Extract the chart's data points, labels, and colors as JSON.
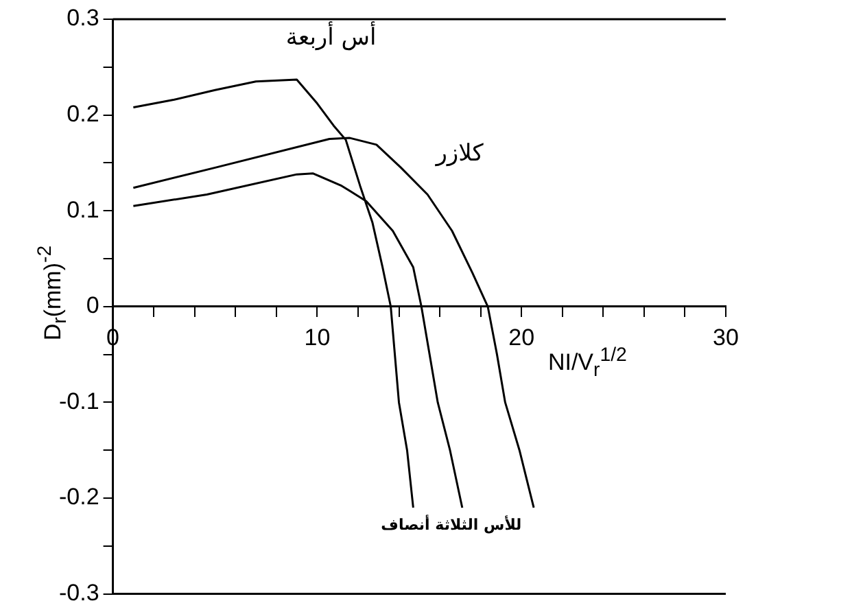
{
  "chart_data": {
    "type": "line",
    "ylabel": "D$_{r}$(mm)$^{-2}$",
    "xlabel": "NI/V$_{r}$$^{1/2}$",
    "xlim": [
      0,
      30
    ],
    "xticks": [
      0,
      {
        "value": 2,
        "label": null
      },
      {
        "value": 4,
        "label": null
      },
      {
        "value": 6,
        "label": null
      },
      {
        "value": 8,
        "label": null
      },
      10,
      {
        "value": 12,
        "label": null
      },
      {
        "value": 14,
        "label": null
      },
      {
        "value": 16,
        "label": null
      },
      {
        "value": 18,
        "label": null
      },
      20,
      {
        "value": 22,
        "label": null
      },
      {
        "value": 24,
        "label": null
      },
      {
        "value": 26,
        "label": null
      },
      {
        "value": 28,
        "label": null
      },
      30
    ],
    "ylim": [
      -0.3,
      0.3
    ],
    "yticks": [
      -0.3,
      {
        "value": -0.25,
        "label": null
      },
      -0.2,
      {
        "value": -0.15,
        "label": null
      },
      -0.1,
      {
        "value": -0.05,
        "label": null
      },
      0,
      {
        "value": 0.05,
        "label": null
      },
      0.1,
      {
        "value": 0.15,
        "label": null
      },
      0.2,
      {
        "value": 0.25,
        "label": null
      },
      0.3
    ],
    "grid": false,
    "legend": false,
    "marker": "none",
    "line_style": "solid",
    "series": [
      {
        "name": "أس أربعة",
        "color": "#000000",
        "x": [
          1,
          3,
          5,
          7,
          9,
          10,
          10.8,
          11.4,
          12.1,
          12.7,
          13.2,
          13.6,
          13.8,
          14,
          14.4,
          14.7
        ],
        "values": [
          0.208,
          0.216,
          0.226,
          0.235,
          0.237,
          0.212,
          0.189,
          0.174,
          0.126,
          0.088,
          0.041,
          0,
          -0.05,
          -0.1,
          -0.15,
          -0.21
        ]
      },
      {
        "name": "كلازر",
        "color": "#000000",
        "x": [
          1,
          5,
          10.6,
          11.6,
          12.9,
          14.1,
          15.4,
          16.6,
          17.6,
          18.35,
          18.8,
          19.2,
          19.9,
          20.6
        ],
        "values": [
          0.124,
          0.145,
          0.175,
          0.176,
          0.169,
          0.145,
          0.117,
          0.079,
          0.035,
          0,
          -0.05,
          -0.1,
          -0.15,
          -0.21
        ]
      },
      {
        "name": "للأس الثلاثة أنصاف",
        "color": "#000000",
        "x": [
          1,
          4.6,
          9,
          9.8,
          11.2,
          12.4,
          13.7,
          14.7,
          15.1,
          15.5,
          15.9,
          16.5,
          17.1
        ],
        "values": [
          0.105,
          0.117,
          0.138,
          0.139,
          0.126,
          0.11,
          0.079,
          0.041,
          0,
          -0.05,
          -0.1,
          -0.15,
          -0.21
        ]
      }
    ]
  }
}
